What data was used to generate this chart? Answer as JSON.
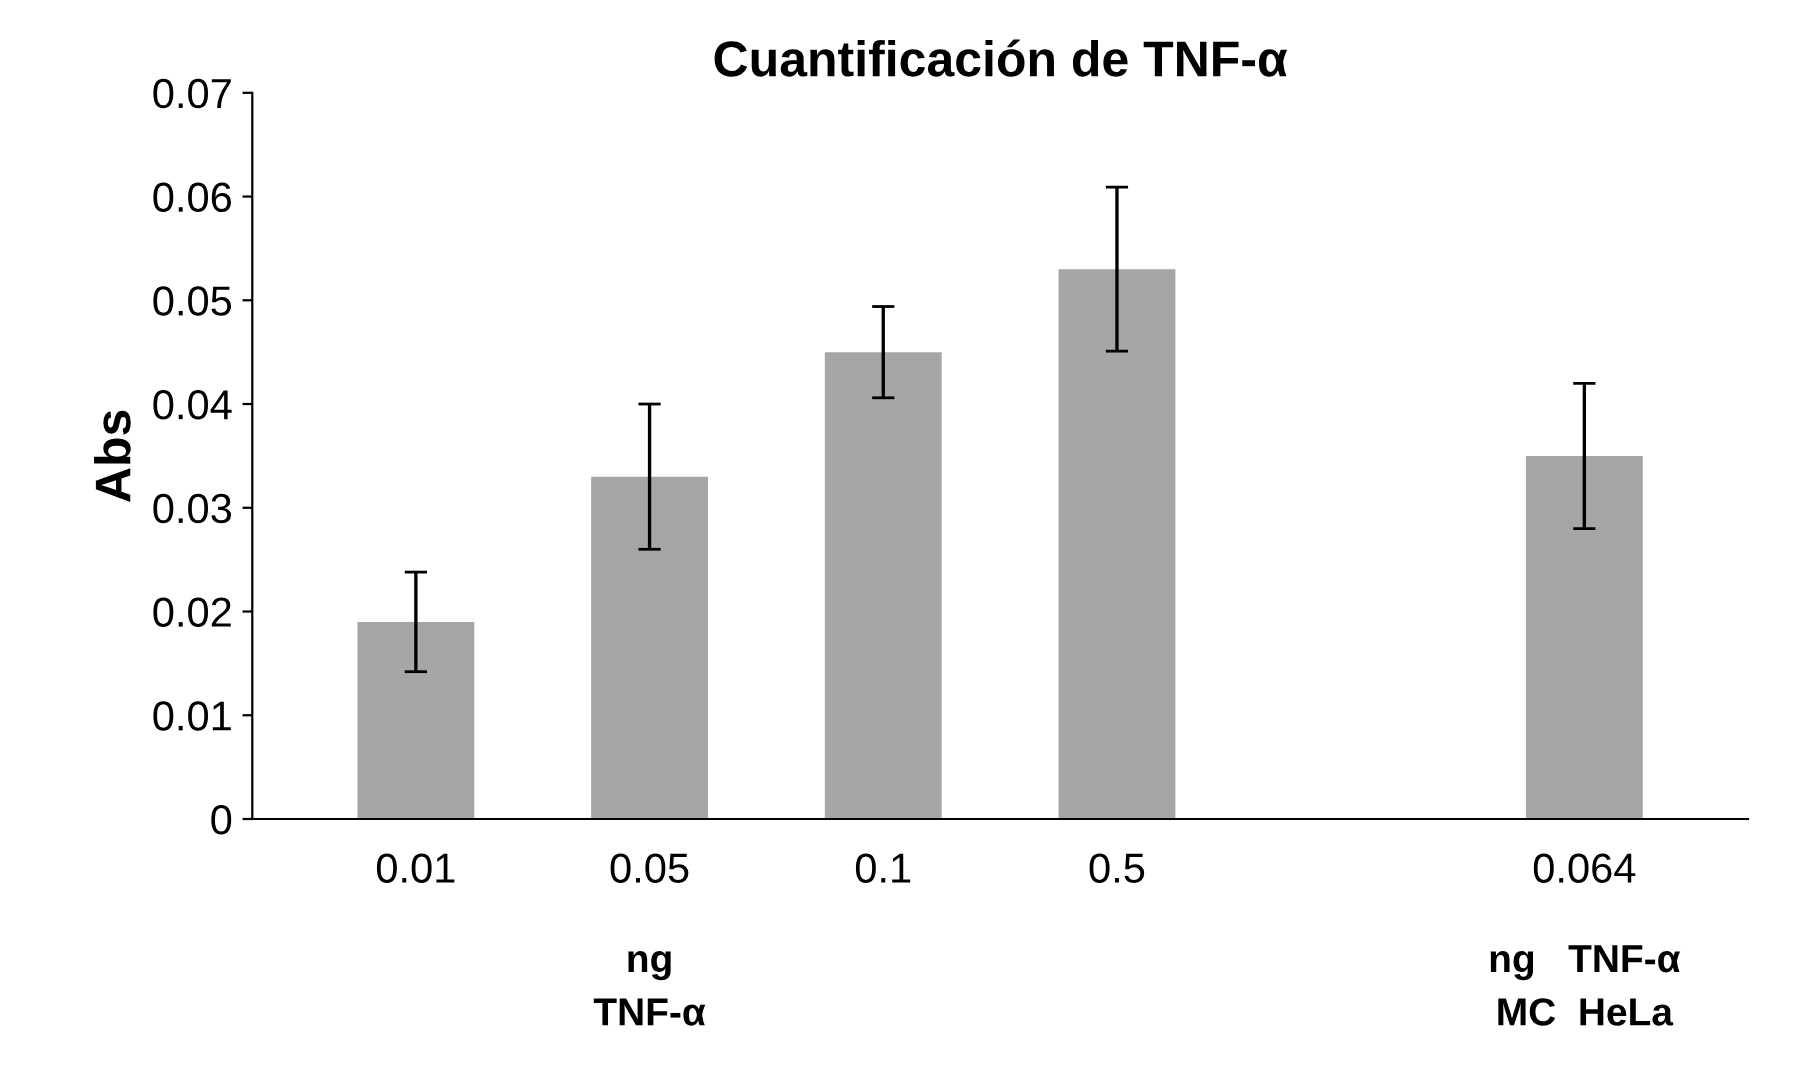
{
  "chart_data": {
    "type": "bar",
    "title": "Cuantificación de TNF-α",
    "ylabel": "Abs",
    "categories": [
      "0.01",
      "0.05",
      "0.1",
      "0.5",
      null,
      "0.064"
    ],
    "values": [
      0.019,
      0.033,
      0.045,
      0.053,
      null,
      0.035
    ],
    "errors": [
      0.0048,
      0.007,
      0.0044,
      0.0079,
      null,
      0.007
    ],
    "color": "#a6a6a6",
    "ylim": [
      0,
      0.07
    ],
    "yticks": [
      0,
      0.01,
      0.02,
      0.03,
      0.04,
      0.05,
      0.06,
      0.07
    ],
    "grid": false,
    "legend": false,
    "annotations": [
      "ng\nTNF-α",
      "ng   TNF-α\nMC  HeLa"
    ]
  }
}
